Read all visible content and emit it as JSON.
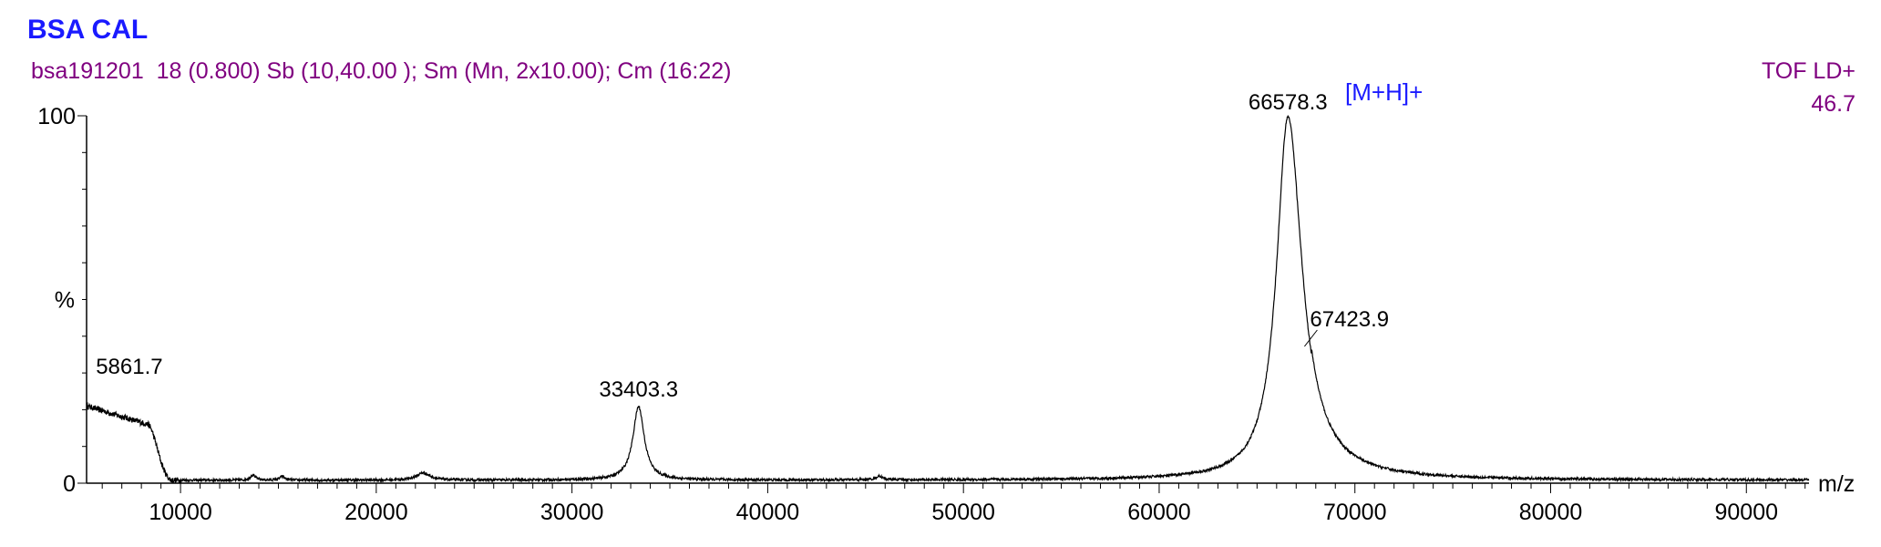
{
  "header": {
    "title": "BSA CAL",
    "subtitle": "bsa191201  18 (0.800) Sb (10,40.00 ); Sm (Mn, 2x10.00); Cm (16:22)",
    "mode": "TOF LD+",
    "mode_value": "46.7"
  },
  "colors": {
    "title": "#1a1aff",
    "subtitle": "#800080",
    "annotation": "#1a1aff",
    "trace": "#000000"
  },
  "chart_data": {
    "type": "line",
    "xlabel": "m/z",
    "ylabel": "%",
    "xlim": [
      5200,
      93200
    ],
    "ylim": [
      0,
      100
    ],
    "x_ticks": [
      10000,
      20000,
      30000,
      40000,
      50000,
      60000,
      70000,
      80000,
      90000
    ],
    "y_ticks": [
      0,
      100
    ],
    "grid": false,
    "baseline": 0.8,
    "annotation": "[M+H]+",
    "peak_labels": [
      {
        "mz": 5861.7,
        "label": "5861.7",
        "intensity": 22
      },
      {
        "mz": 33403.3,
        "label": "33403.3",
        "intensity": 21
      },
      {
        "mz": 66578.3,
        "label": "66578.3",
        "intensity": 100
      },
      {
        "mz": 67423.9,
        "label": "67423.9",
        "intensity": 38
      }
    ],
    "peaks": [
      {
        "center": 66578.3,
        "height": 99,
        "width": 700
      },
      {
        "center": 33403.3,
        "height": 20,
        "width": 350
      },
      {
        "center": 22400,
        "height": 2,
        "width": 400
      },
      {
        "center": 13700,
        "height": 1.5,
        "width": 150
      },
      {
        "center": 15200,
        "height": 1,
        "width": 150
      },
      {
        "center": 45700,
        "height": 1,
        "width": 200
      }
    ],
    "low_mass_plateau": {
      "x_start": 5200,
      "x_end": 10000,
      "start_value": 21,
      "shoulder_mz": 8300,
      "shoulder_value": 16
    }
  }
}
